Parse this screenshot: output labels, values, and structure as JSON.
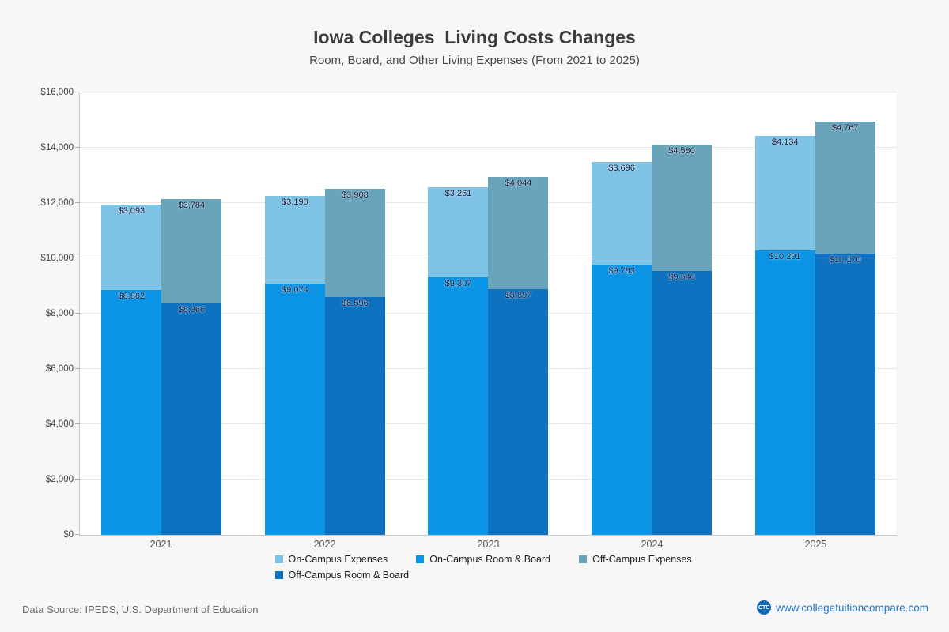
{
  "title": "Iowa Colleges  Living Costs Changes",
  "subtitle": "Room, Board, and Other Living Expenses (From 2021 to 2025)",
  "footer": {
    "source": "Data Source: IPEDS, U.S. Department of Education",
    "logo": "CTC",
    "site": "www.collegetuitioncompare.com"
  },
  "colors": {
    "on_campus_room_board": "#0b94e6",
    "on_campus_expenses": "#7ec2e5",
    "off_campus_room_board": "#0f72c1",
    "off_campus_expenses": "#69a4ba",
    "link_blue": "#2176c7",
    "logo_blue": "#1468b3"
  },
  "chart_data": {
    "type": "bar",
    "stacked": true,
    "title": "Iowa Colleges  Living Costs Changes",
    "subtitle": "Room, Board, and Other Living Expenses (From 2021 to 2025)",
    "categories": [
      "2021",
      "2022",
      "2023",
      "2024",
      "2025"
    ],
    "series": [
      {
        "name": "On-Campus Room & Board",
        "color": "#0b94e6",
        "values": [
          8862,
          9074,
          9307,
          9783,
          10291
        ]
      },
      {
        "name": "On-Campus Expenses",
        "color": "#7ec2e5",
        "values": [
          3093,
          3190,
          3261,
          3696,
          4134
        ]
      },
      {
        "name": "Off-Campus Room & Board",
        "color": "#0f72c1",
        "values": [
          8366,
          8596,
          8897,
          9540,
          10170
        ]
      },
      {
        "name": "Off-Campus Expenses",
        "color": "#69a4ba",
        "values": [
          3784,
          3908,
          4044,
          4580,
          4767
        ]
      }
    ],
    "ylim": [
      0,
      16000
    ],
    "ytick_step": 2000,
    "ytick_labels": [
      "$0",
      "$2,000",
      "$4,000",
      "$6,000",
      "$8,000",
      "$10,000",
      "$12,000",
      "$14,000",
      "$16,000"
    ],
    "grid": true,
    "legend_position": "bottom",
    "legend": [
      {
        "label": "On-Campus Expenses",
        "color": "#7ec2e5"
      },
      {
        "label": "On-Campus Room & Board",
        "color": "#0b94e6"
      },
      {
        "label": "Off-Campus Expenses",
        "color": "#69a4ba"
      },
      {
        "label": "Off-Campus Room & Board",
        "color": "#0f72c1"
      }
    ]
  }
}
